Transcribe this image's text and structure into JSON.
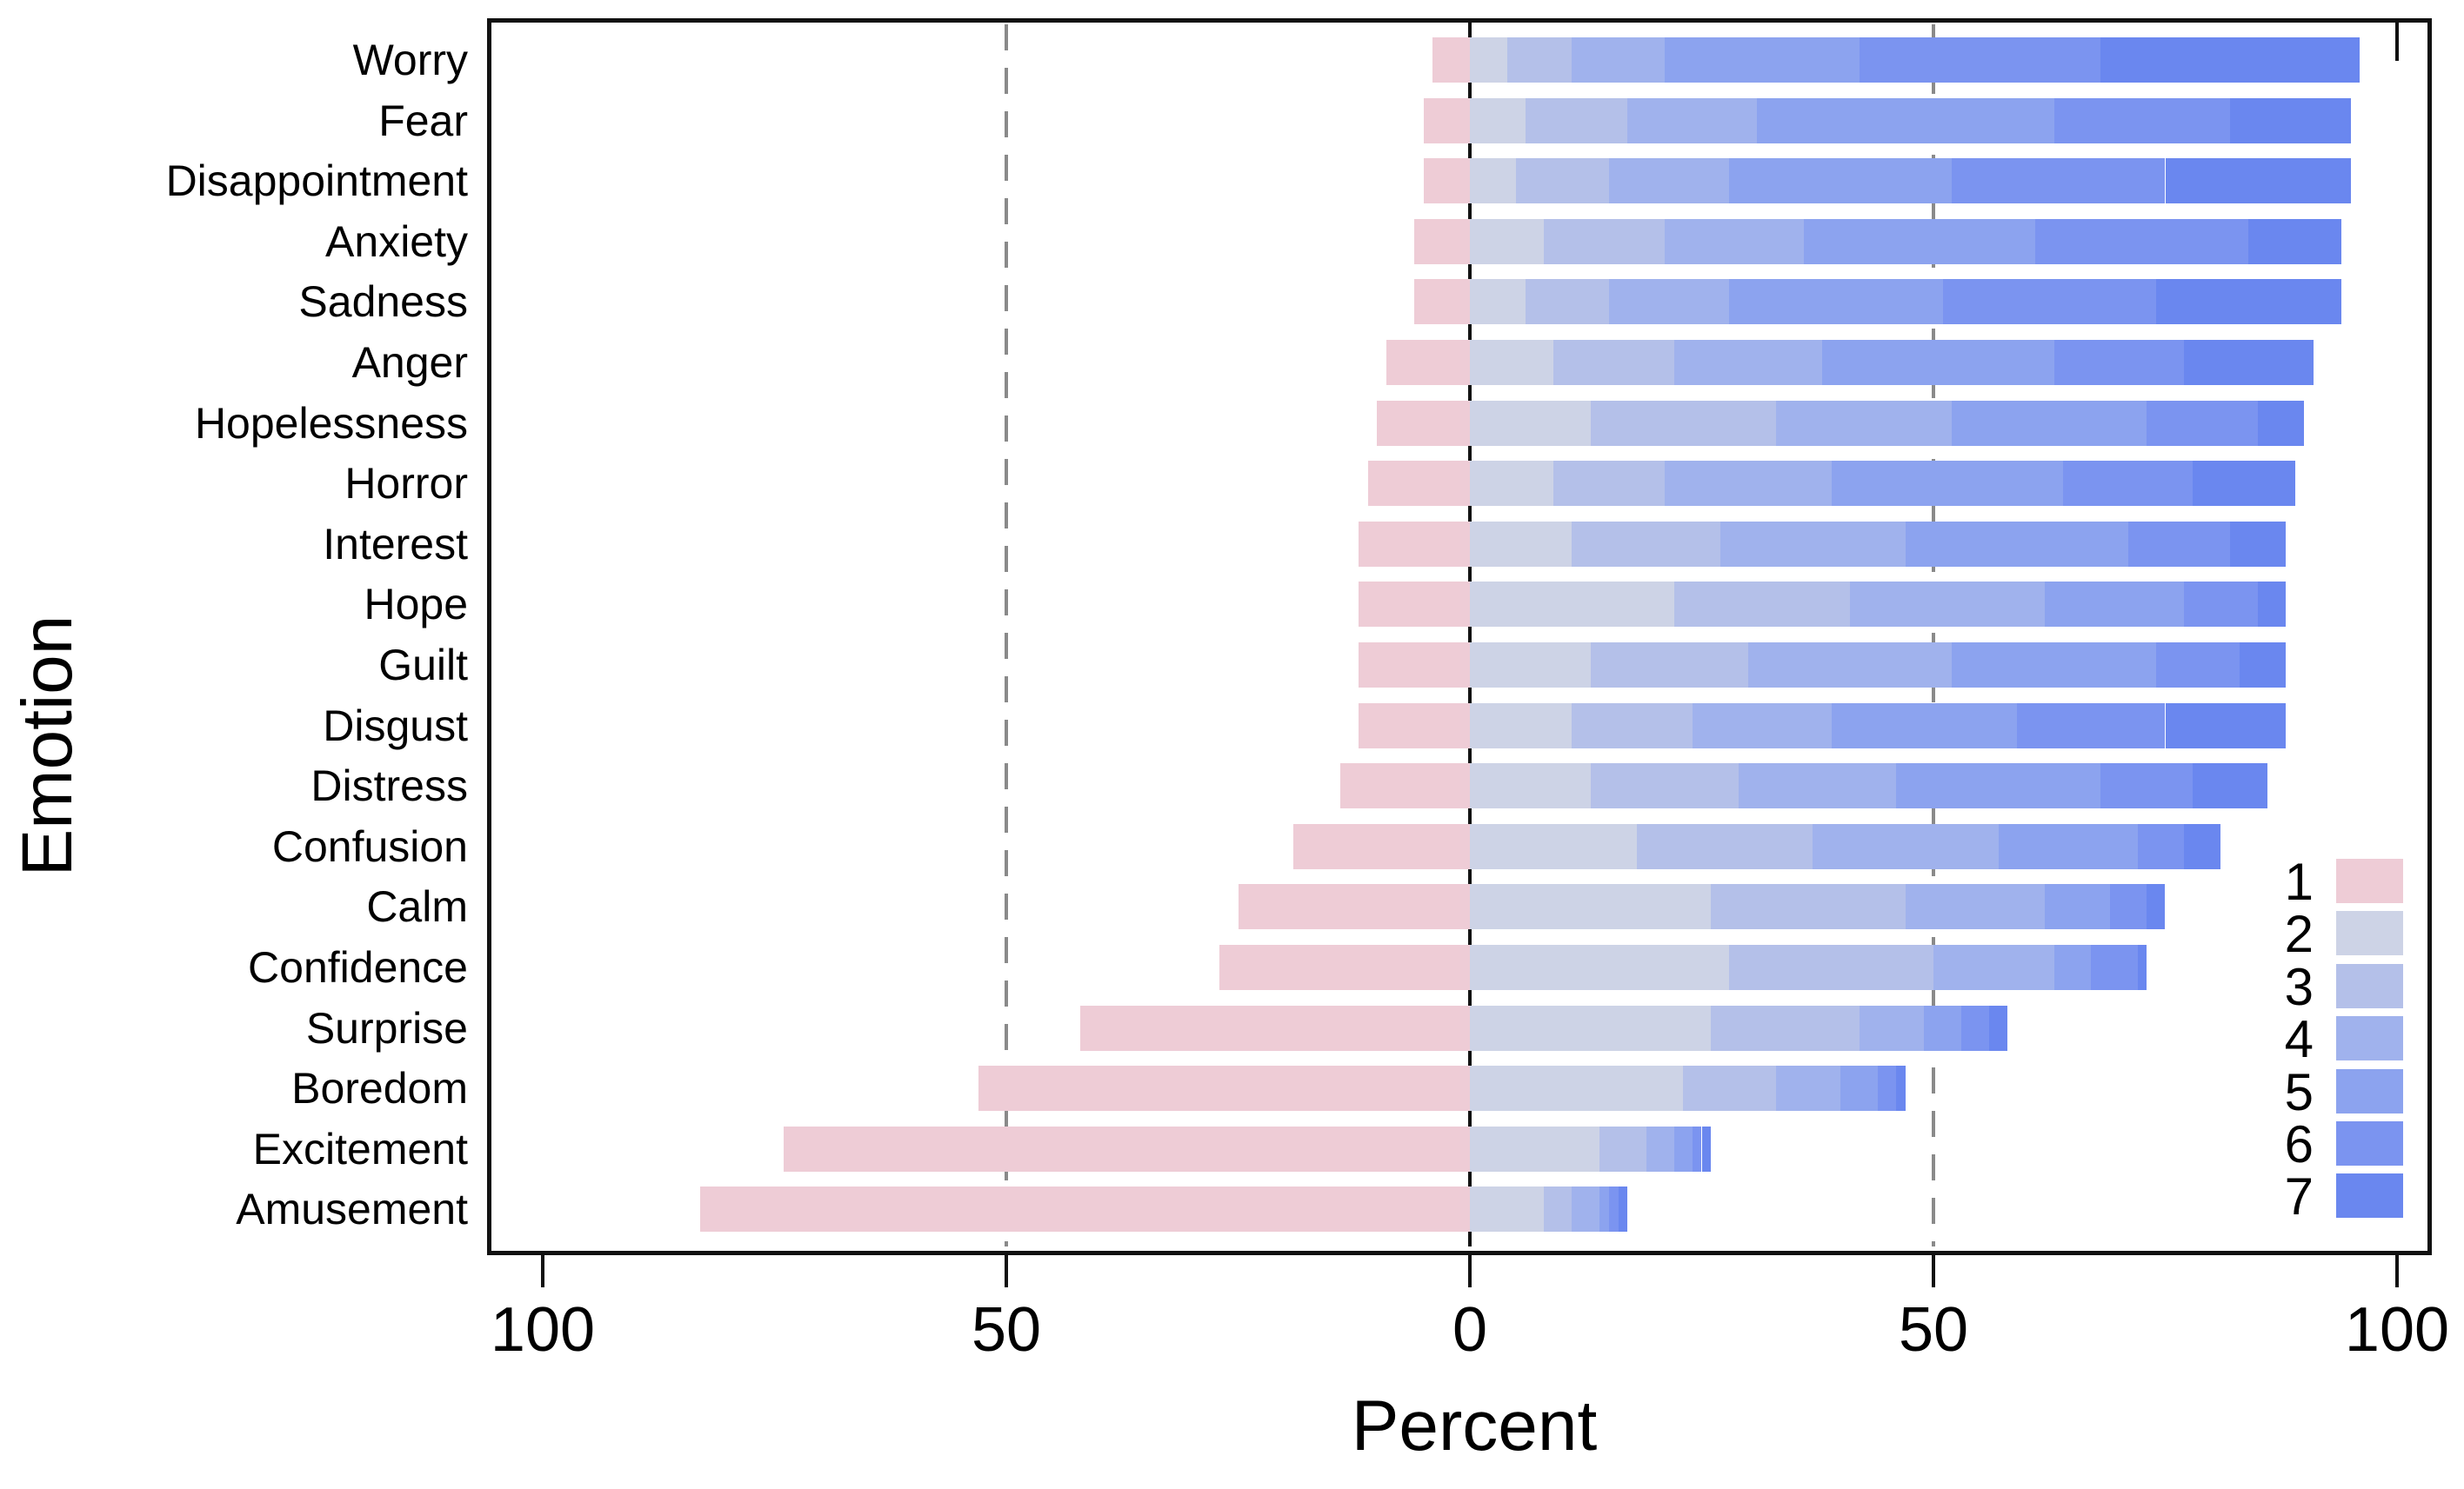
{
  "chart_data": {
    "type": "bar",
    "variant": "horizontal_diverging_stacked_likert",
    "title": "",
    "xlabel": "Percent",
    "ylabel": "Emotion",
    "x_tick_labels": [
      "100",
      "50",
      "0",
      "50",
      "100"
    ],
    "x_tick_values": [
      -100,
      -50,
      0,
      50,
      100
    ],
    "xlim": [
      -106,
      103
    ],
    "grid": "dashed vertical gridlines at -50 and +50; solid vertical reference line at 0; black plot frame",
    "legend_position": "inside-bottom-right",
    "scale_note": "7-point response scale; percent choosing 1 plotted leftward from 0, percents for 2-7 stacked rightward from 0",
    "gridline_color": "#8a8a8a",
    "frame_color": "#111111",
    "categories": [
      "Worry",
      "Fear",
      "Disappointment",
      "Anxiety",
      "Sadness",
      "Anger",
      "Hopelessness",
      "Horror",
      "Interest",
      "Hope",
      "Guilt",
      "Disgust",
      "Distress",
      "Confusion",
      "Calm",
      "Confidence",
      "Surprise",
      "Boredom",
      "Excitement",
      "Amusement"
    ],
    "series": [
      {
        "name": "1",
        "color": "#eeccd6",
        "side": "left",
        "values": [
          4,
          5,
          5,
          6,
          6,
          9,
          10,
          11,
          12,
          12,
          12,
          12,
          14,
          19,
          25,
          27,
          42,
          53,
          74,
          83
        ]
      },
      {
        "name": "2",
        "color": "#cdd3e6",
        "side": "right",
        "values": [
          4,
          6,
          5,
          8,
          6,
          9,
          13,
          9,
          11,
          22,
          13,
          11,
          13,
          18,
          26,
          28,
          26,
          23,
          14,
          8
        ]
      },
      {
        "name": "3",
        "color": "#b4c0e9",
        "side": "right",
        "values": [
          7,
          11,
          10,
          13,
          9,
          13,
          20,
          12,
          16,
          19,
          17,
          13,
          16,
          19,
          21,
          22,
          16,
          10,
          5,
          3
        ]
      },
      {
        "name": "4",
        "color": "#a0b2ed",
        "side": "right",
        "values": [
          10,
          14,
          13,
          15,
          13,
          16,
          19,
          18,
          20,
          21,
          22,
          15,
          17,
          20,
          15,
          13,
          7,
          7,
          3,
          3
        ]
      },
      {
        "name": "5",
        "color": "#8ca3ef",
        "side": "right",
        "values": [
          21,
          32,
          24,
          25,
          23,
          25,
          21,
          25,
          24,
          15,
          22,
          20,
          22,
          15,
          7,
          4,
          4,
          4,
          2,
          1
        ]
      },
      {
        "name": "6",
        "color": "#7b94f0",
        "side": "right",
        "values": [
          26,
          19,
          23,
          23,
          23,
          14,
          12,
          14,
          11,
          8,
          9,
          16,
          10,
          5,
          4,
          5,
          3,
          2,
          1,
          1
        ]
      },
      {
        "name": "7",
        "color": "#6a87ef",
        "side": "right",
        "values": [
          28,
          13,
          20,
          10,
          20,
          14,
          5,
          11,
          6,
          3,
          5,
          13,
          8,
          4,
          2,
          1,
          2,
          1,
          1,
          1
        ]
      }
    ],
    "legend_entries": [
      "1",
      "2",
      "3",
      "4",
      "5",
      "6",
      "7"
    ]
  }
}
